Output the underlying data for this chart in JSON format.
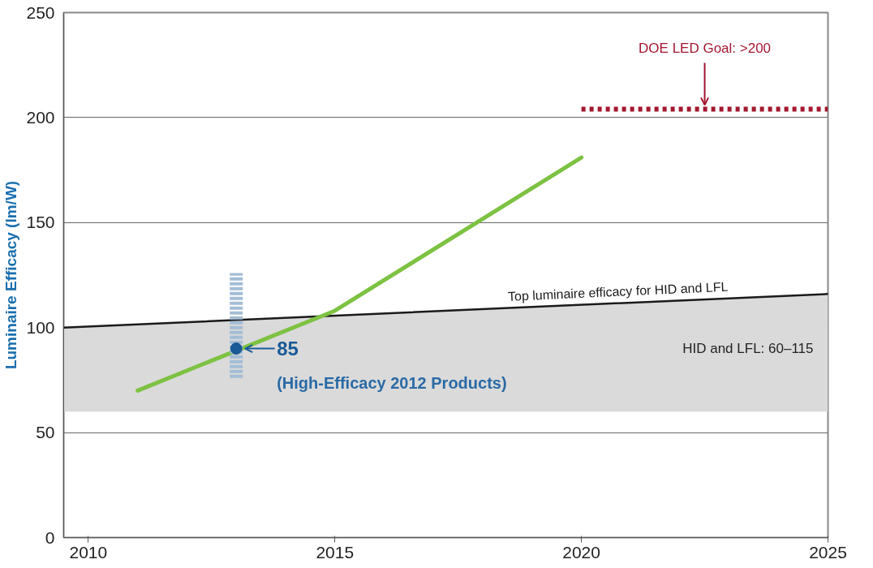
{
  "chart_data": {
    "type": "line",
    "ylabel": "Luminaire Efficacy (lm/W)",
    "xlim": [
      2009.5,
      2025
    ],
    "xticks": [
      2010,
      2015,
      2020,
      2025
    ],
    "ylim": [
      0,
      250
    ],
    "yticks": [
      0,
      50,
      100,
      150,
      200,
      250
    ],
    "grid": "y",
    "series": [
      {
        "name": "Top luminaire efficacy for HID and LFL",
        "color": "#1a1a1a",
        "x": [
          2009.5,
          2025
        ],
        "values": [
          100,
          116
        ],
        "lower": [
          60,
          60
        ],
        "upper": [
          100,
          116
        ]
      },
      {
        "color": "#7dc242",
        "x": [
          2011,
          2015,
          2020
        ],
        "values": [
          70,
          108,
          181
        ]
      },
      {
        "color": "#a3172f",
        "x": [
          2020,
          2025
        ],
        "values": [
          204,
          204
        ],
        "line_style": "dotted"
      },
      {
        "type": "scatter",
        "color": "#1a5a96",
        "x": [
          2013
        ],
        "values": [
          90
        ],
        "errors": [
          [
            76,
            126
          ]
        ]
      }
    ],
    "annotations": [
      {
        "text": "DOE LED Goal: >200",
        "x": 2022.5,
        "y": 204
      },
      {
        "text": "85",
        "x": 2013,
        "y": 90
      },
      {
        "text": "(High-Efficacy 2012 Products)",
        "x": 2013,
        "y": 90
      },
      {
        "text": "HID and LFL: 60–115",
        "x": 2025,
        "y": 90
      }
    ]
  }
}
